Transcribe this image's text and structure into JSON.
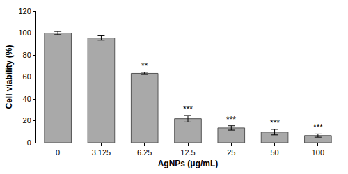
{
  "chart_data": {
    "type": "bar",
    "x_label": "AgNPs (μg/mL)",
    "y_label": "Cell viability (%)",
    "categories": [
      "0",
      "3.125",
      "6.25",
      "12.5",
      "25",
      "50",
      "100"
    ],
    "values": [
      100,
      95.5,
      63.2,
      21.8,
      13.4,
      9.6,
      6.5
    ],
    "errors": [
      1.5,
      2,
      1,
      3,
      2,
      2.5,
      1.5
    ],
    "color": "#a9a9a9",
    "ylim": [
      0,
      120
    ],
    "yticks": [
      0,
      20,
      40,
      60,
      80,
      100,
      120
    ],
    "grid": false,
    "annotations": [
      {
        "category": "6.25",
        "text": "**"
      },
      {
        "category": "12.5",
        "text": "***"
      },
      {
        "category": "25",
        "text": "***"
      },
      {
        "category": "50",
        "text": "***"
      },
      {
        "category": "100",
        "text": "***"
      }
    ]
  }
}
